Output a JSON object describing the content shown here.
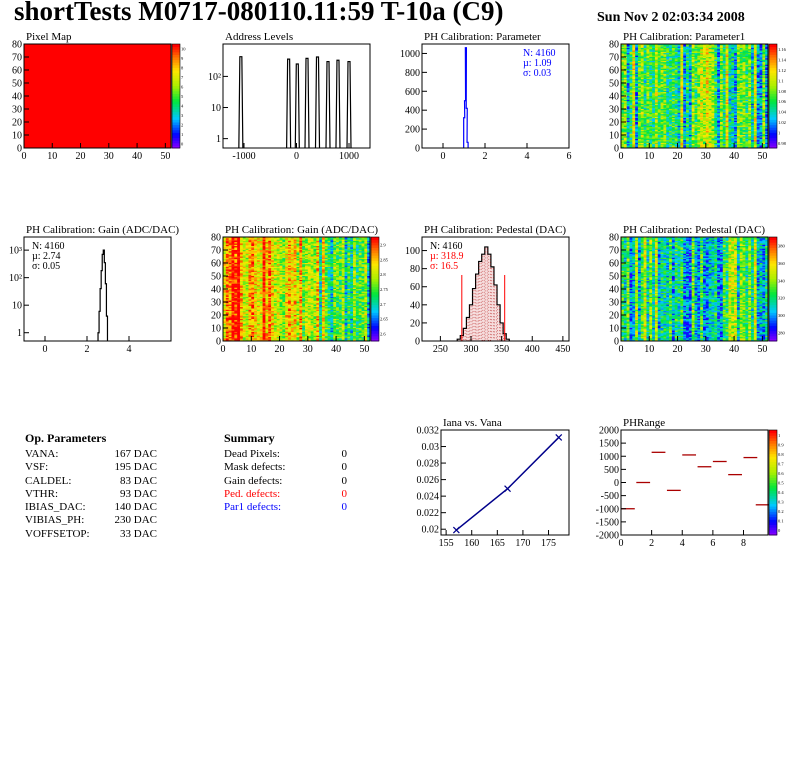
{
  "header": {
    "title": "shortTests M0717-080110.11:59 T-10a (C9)",
    "timestamp": "Sun Nov  2 02:03:34 2008"
  },
  "colors": {
    "blue": "#0000ff",
    "red": "#ff0000",
    "darkred": "#aa0000",
    "navy": "#00008b"
  },
  "chart_data": [
    {
      "type": "heatmap",
      "title": "Pixel Map",
      "x_ticks": [
        "0",
        "10",
        "20",
        "30",
        "40",
        "50"
      ],
      "y_ticks": [
        "0",
        "10",
        "20",
        "30",
        "40",
        "50",
        "60",
        "70",
        "80"
      ],
      "xlim": [
        0,
        52
      ],
      "ylim": [
        0,
        80
      ],
      "values": "uniform 10",
      "z_ticks": [
        "0",
        "1",
        "2",
        "3",
        "4",
        "5",
        "6",
        "7",
        "8",
        "9",
        "10"
      ],
      "zlim": [
        0,
        10
      ]
    },
    {
      "type": "bar",
      "title": "Address Levels",
      "x_ticks": [
        "-1000",
        "0",
        "1000"
      ],
      "xlim": [
        -1400,
        1400
      ],
      "y_scale": "log",
      "y_ticks": [
        "1",
        "10",
        "10²"
      ],
      "ylim": [
        0.5,
        1100
      ],
      "peaks": [
        {
          "x": -1060,
          "y": 430
        },
        {
          "x": -150,
          "y": 360
        },
        {
          "x": 15,
          "y": 250
        },
        {
          "x": 200,
          "y": 380
        },
        {
          "x": 400,
          "y": 420
        },
        {
          "x": 600,
          "y": 300
        },
        {
          "x": 790,
          "y": 330
        },
        {
          "x": 1000,
          "y": 300
        }
      ]
    },
    {
      "type": "bar",
      "title": "PH Calibration: Parameter",
      "x_ticks": [
        "0",
        "2",
        "4",
        "6"
      ],
      "xlim": [
        -1,
        6
      ],
      "y_ticks": [
        "0",
        "200",
        "400",
        "600",
        "800",
        "1000"
      ],
      "ylim": [
        0,
        1100
      ],
      "stats": [
        "N: 4160",
        "µ: 1.09",
        "σ: 0.03"
      ],
      "bins": [
        {
          "x": 1.01,
          "y": 320
        },
        {
          "x": 1.05,
          "y": 500
        },
        {
          "x": 1.09,
          "y": 1060
        },
        {
          "x": 1.13,
          "y": 420
        },
        {
          "x": 1.17,
          "y": 60
        }
      ]
    },
    {
      "type": "heatmap",
      "title": "PH Calibration: Parameter1",
      "x_ticks": [
        "0",
        "10",
        "20",
        "30",
        "40",
        "50"
      ],
      "y_ticks": [
        "0",
        "10",
        "20",
        "30",
        "40",
        "50",
        "60",
        "70",
        "80"
      ],
      "xlim": [
        0,
        52
      ],
      "ylim": [
        0,
        80
      ],
      "z_ticks": [
        "0.98",
        "1",
        "1.02",
        "1.04",
        "1.06",
        "1.08",
        "1.1",
        "1.12",
        "1.14",
        "1.16"
      ],
      "zlim": [
        0.97,
        1.17
      ]
    },
    {
      "type": "bar",
      "title": "PH Calibration: Gain (ADC/DAC)",
      "x_ticks": [
        "0",
        "2",
        "4"
      ],
      "xlim": [
        -1,
        6
      ],
      "y_scale": "log",
      "y_ticks": [
        "1",
        "10",
        "10²",
        "10³"
      ],
      "ylim": [
        0.5,
        3000
      ],
      "stats": [
        "N: 4160",
        "µ: 2.74",
        "σ: 0.05"
      ],
      "bins": [
        {
          "x": 2.55,
          "y": 1
        },
        {
          "x": 2.6,
          "y": 6
        },
        {
          "x": 2.65,
          "y": 40
        },
        {
          "x": 2.7,
          "y": 180
        },
        {
          "x": 2.75,
          "y": 700
        },
        {
          "x": 2.8,
          "y": 1000
        },
        {
          "x": 2.85,
          "y": 350
        },
        {
          "x": 2.9,
          "y": 60
        },
        {
          "x": 2.95,
          "y": 4
        }
      ]
    },
    {
      "type": "heatmap",
      "title": "PH Calibration: Gain (ADC/DAC)",
      "x_ticks": [
        "0",
        "10",
        "20",
        "30",
        "40",
        "50"
      ],
      "y_ticks": [
        "0",
        "10",
        "20",
        "30",
        "40",
        "50",
        "60",
        "70",
        "80"
      ],
      "xlim": [
        0,
        52
      ],
      "ylim": [
        0,
        80
      ],
      "z_ticks": [
        "2.6",
        "2.65",
        "2.7",
        "2.75",
        "2.8",
        "2.85",
        "2.9"
      ],
      "zlim": [
        2.58,
        2.92
      ]
    },
    {
      "type": "bar",
      "title": "PH Calibration: Pedestal (DAC)",
      "x_ticks": [
        "250",
        "300",
        "350",
        "400",
        "450"
      ],
      "xlim": [
        220,
        460
      ],
      "y_ticks": [
        "0",
        "20",
        "40",
        "60",
        "80",
        "100"
      ],
      "ylim": [
        0,
        115
      ],
      "stats": [
        "N: 4160",
        "µ: 318.9",
        "σ: 16.5"
      ],
      "cut_lines": [
        285,
        355
      ],
      "bins": [
        {
          "x": 280,
          "y": 2
        },
        {
          "x": 285,
          "y": 6
        },
        {
          "x": 290,
          "y": 14
        },
        {
          "x": 295,
          "y": 26
        },
        {
          "x": 300,
          "y": 40
        },
        {
          "x": 305,
          "y": 58
        },
        {
          "x": 310,
          "y": 74
        },
        {
          "x": 315,
          "y": 88
        },
        {
          "x": 320,
          "y": 96
        },
        {
          "x": 325,
          "y": 104
        },
        {
          "x": 330,
          "y": 96
        },
        {
          "x": 335,
          "y": 82
        },
        {
          "x": 340,
          "y": 62
        },
        {
          "x": 345,
          "y": 40
        },
        {
          "x": 350,
          "y": 20
        },
        {
          "x": 355,
          "y": 8
        },
        {
          "x": 360,
          "y": 2
        }
      ]
    },
    {
      "type": "heatmap",
      "title": "PH Calibration: Pedestal (DAC)",
      "x_ticks": [
        "0",
        "10",
        "20",
        "30",
        "40",
        "50"
      ],
      "y_ticks": [
        "0",
        "10",
        "20",
        "30",
        "40",
        "50",
        "60",
        "70",
        "80"
      ],
      "xlim": [
        0,
        52
      ],
      "ylim": [
        0,
        80
      ],
      "z_ticks": [
        "280",
        "300",
        "320",
        "340",
        "360",
        "380"
      ],
      "zlim": [
        270,
        390
      ]
    },
    {
      "type": "line",
      "title": "Iana vs. Vana",
      "x_ticks": [
        "155",
        "160",
        "165",
        "170",
        "175"
      ],
      "xlim": [
        154,
        179
      ],
      "y_ticks": [
        "0.02",
        "0.022",
        "0.024",
        "0.026",
        "0.028",
        "0.03",
        "0.032"
      ],
      "ylim": [
        0.0193,
        0.032
      ],
      "x": [
        157,
        167,
        177
      ],
      "y": [
        0.0199,
        0.0249,
        0.0311
      ]
    },
    {
      "type": "scatter",
      "title": "PHRange",
      "x_ticks": [
        "0",
        "2",
        "4",
        "6",
        "8"
      ],
      "xlim": [
        0,
        9.6
      ],
      "y_ticks": [
        "-2000",
        "-1500",
        "-1000",
        "-500",
        "0",
        "500",
        "1000",
        "1500",
        "2000"
      ],
      "ylim": [
        -2000,
        2000
      ],
      "z_ticks": [
        "0",
        "0.1",
        "0.2",
        "0.3",
        "0.4",
        "0.5",
        "0.6",
        "0.7",
        "0.8",
        "0.9",
        "1"
      ],
      "segments": [
        {
          "x": 0,
          "y": -1000
        },
        {
          "x": 1,
          "y": 0
        },
        {
          "x": 2,
          "y": 1150
        },
        {
          "x": 3,
          "y": -300
        },
        {
          "x": 4,
          "y": 1050
        },
        {
          "x": 5,
          "y": 600
        },
        {
          "x": 6,
          "y": 800
        },
        {
          "x": 7,
          "y": 300
        },
        {
          "x": 8,
          "y": 950
        },
        {
          "x": 8.8,
          "y": -850
        }
      ]
    }
  ],
  "op_params": {
    "heading": "Op. Parameters",
    "rows": [
      {
        "name": "VANA:",
        "value": "167 DAC"
      },
      {
        "name": "VSF:",
        "value": "195 DAC"
      },
      {
        "name": "CALDEL:",
        "value": "83 DAC"
      },
      {
        "name": "VTHR:",
        "value": "93 DAC"
      },
      {
        "name": "IBIAS_DAC:",
        "value": "140 DAC"
      },
      {
        "name": "VIBIAS_PH:",
        "value": "230 DAC"
      },
      {
        "name": "VOFFSETOP:",
        "value": "33 DAC"
      }
    ]
  },
  "summary": {
    "heading": "Summary",
    "rows": [
      {
        "name": "Dead Pixels:",
        "value": "0",
        "color": "#000000"
      },
      {
        "name": "Mask defects:",
        "value": "0",
        "color": "#000000"
      },
      {
        "name": "Gain defects:",
        "value": "0",
        "color": "#000000"
      },
      {
        "name": "Ped. defects:",
        "value": "0",
        "color": "#ff0000"
      },
      {
        "name": "Par1 defects:",
        "value": "0",
        "color": "#0000ff"
      }
    ]
  }
}
